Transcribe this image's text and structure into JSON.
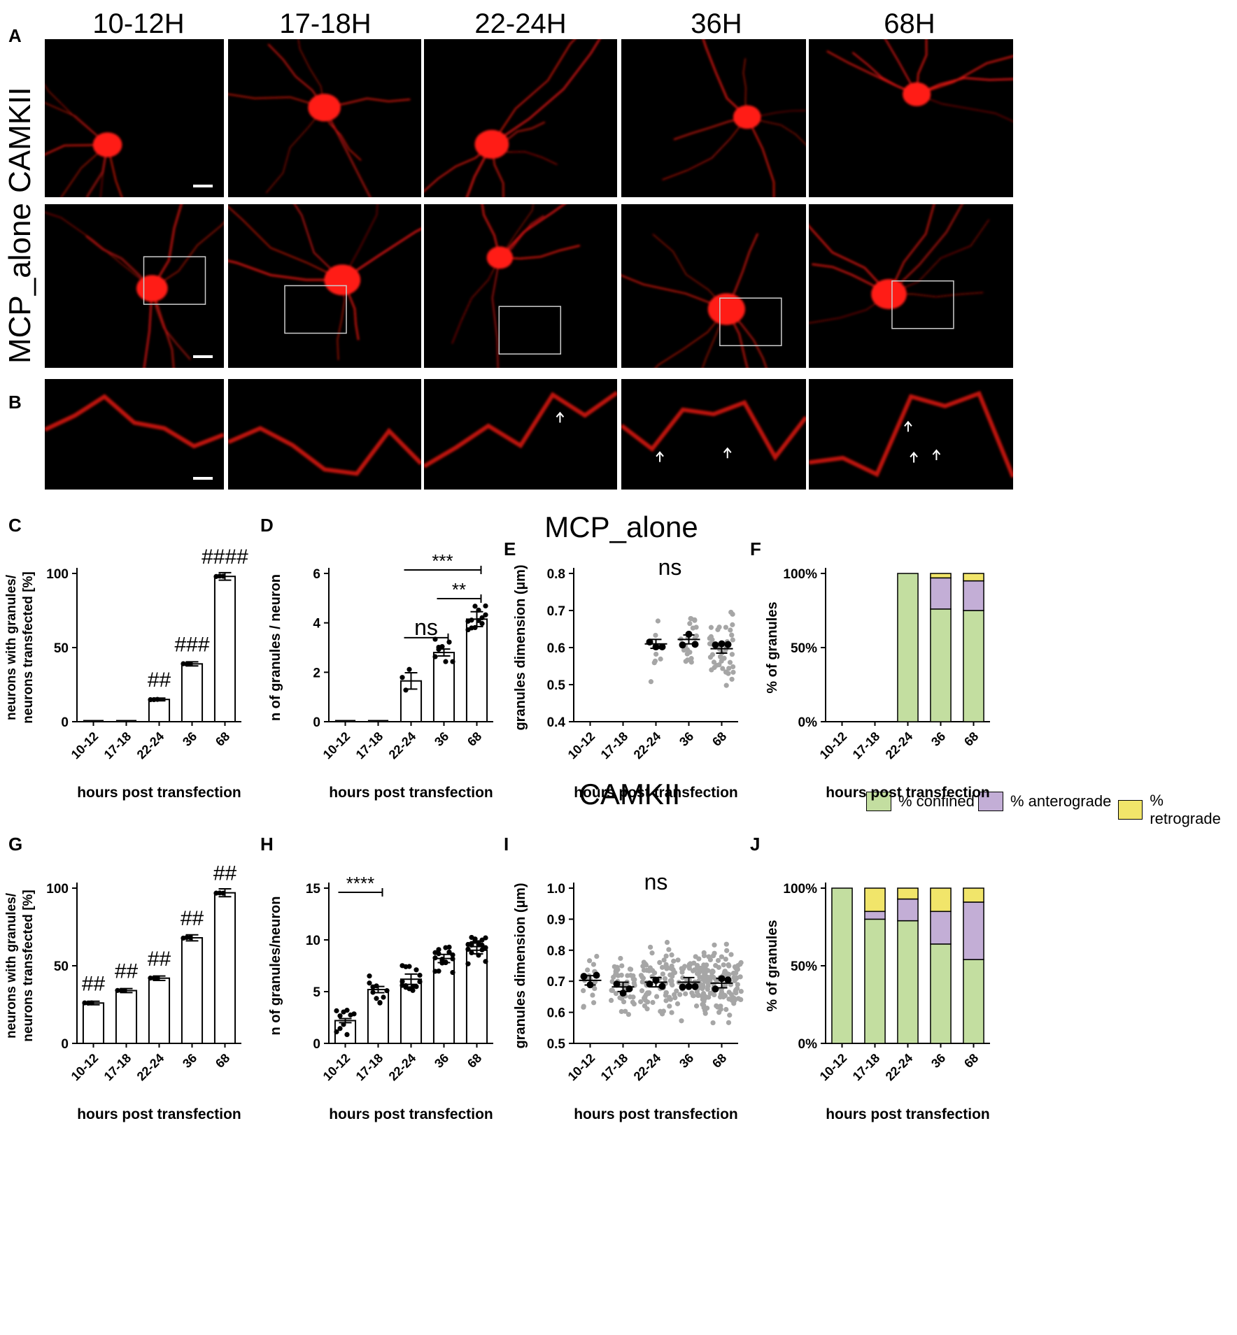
{
  "panels": {
    "A": "A",
    "B": "B",
    "C": "C",
    "D": "D",
    "E": "E",
    "F": "F",
    "G": "G",
    "H": "H",
    "I": "I",
    "J": "J"
  },
  "timepoints": [
    "10-12H",
    "17-18H",
    "22-24H",
    "36H",
    "68H"
  ],
  "row_labels": {
    "camkii": "CAMKII",
    "mcp": "MCP_alone"
  },
  "section_titles": {
    "mcp": "MCP_alone",
    "camkii": "CAMKII"
  },
  "legend": [
    {
      "label": "% confined",
      "color": "#c3dea0"
    },
    {
      "label": "% anterograde",
      "color": "#c3aed6"
    },
    {
      "label": "% retrograde",
      "color": "#f1e56a"
    }
  ],
  "colors": {
    "micro_red": "#ff1a14",
    "confined": "#c3dea0",
    "anterograde": "#c3aed6",
    "retrograde": "#f1e56a",
    "grey_dot": "#a6a6a6"
  },
  "chart_data": [
    {
      "id": "C",
      "type": "bar",
      "categories": [
        "10-12",
        "17-18",
        "22-24",
        "36",
        "68"
      ],
      "values": [
        0,
        0,
        15,
        39,
        98
      ],
      "xlabel": "hours post transfection",
      "ylabel_lines": [
        "neurons with granules/",
        "neurons transfected [%]"
      ],
      "ylim": [
        0,
        100
      ],
      "yticks": [
        0,
        50,
        100
      ],
      "annotations": [
        "",
        "",
        "##",
        "###",
        "####"
      ]
    },
    {
      "id": "D",
      "type": "bar",
      "categories": [
        "10-12",
        "17-18",
        "22-24",
        "36",
        "68"
      ],
      "values": [
        0,
        0,
        1.65,
        2.8,
        4.15
      ],
      "sem": [
        0,
        0,
        0.33,
        0.14,
        0.3
      ],
      "xlabel": "hours post transfection",
      "ylabel": "n of granules / neuron",
      "ylim": [
        0,
        6
      ],
      "yticks": [
        0,
        2,
        4,
        6
      ],
      "brackets": [
        {
          "from": 2,
          "to": 4,
          "label": "***"
        },
        {
          "from": 3,
          "to": 4,
          "label": "**"
        },
        {
          "from": 2,
          "to": 3,
          "label": "ns"
        }
      ]
    },
    {
      "id": "E",
      "type": "scatter",
      "categories": [
        "10-12",
        "17-18",
        "22-24",
        "36",
        "68"
      ],
      "means": [
        null,
        null,
        0.61,
        0.622,
        0.597
      ],
      "xlabel": "hours post transfection",
      "ylabel": "granules dimension (µm)",
      "ylim": [
        0.4,
        0.8
      ],
      "yticks": [
        0.4,
        0.5,
        0.6,
        0.7,
        0.8
      ],
      "annotation": "ns"
    },
    {
      "id": "F",
      "type": "bar",
      "stacked": true,
      "categories": [
        "10-12",
        "17-18",
        "22-24",
        "36",
        "68"
      ],
      "series": [
        {
          "name": "% confined",
          "values": [
            0,
            0,
            100,
            76,
            75
          ]
        },
        {
          "name": "% anterograde",
          "values": [
            0,
            0,
            0,
            21,
            20
          ]
        },
        {
          "name": "% retrograde",
          "values": [
            0,
            0,
            0,
            3,
            5
          ]
        }
      ],
      "xlabel": "hours post transfection",
      "ylabel": "% of granules",
      "yticks": [
        "0%",
        "50%",
        "100%"
      ]
    },
    {
      "id": "G",
      "type": "bar",
      "categories": [
        "10-12",
        "17-18",
        "22-24",
        "36",
        "68"
      ],
      "values": [
        26,
        34,
        42,
        68,
        97
      ],
      "xlabel": "hours post transfection",
      "ylabel_lines": [
        "neurons with granules/",
        "neurons transfected [%]"
      ],
      "ylim": [
        0,
        100
      ],
      "yticks": [
        0,
        50,
        100
      ],
      "annotations": [
        "##",
        "##",
        "##",
        "##",
        "##"
      ]
    },
    {
      "id": "H",
      "type": "bar",
      "categories": [
        "10-12",
        "17-18",
        "22-24",
        "36",
        "68"
      ],
      "values": [
        2.2,
        5.2,
        6.2,
        8.2,
        9.0
      ],
      "sem": [
        0.2,
        0.3,
        0.5,
        0.4,
        0.35
      ],
      "xlabel": "hours post transfection",
      "ylabel": "n of granules/neuron",
      "ylim": [
        0,
        15
      ],
      "yticks": [
        0,
        5,
        10,
        15
      ],
      "brackets": [
        {
          "from": 0,
          "to": 1,
          "label": "****"
        }
      ]
    },
    {
      "id": "I",
      "type": "scatter",
      "categories": [
        "10-12",
        "17-18",
        "22-24",
        "36",
        "68"
      ],
      "means": [
        0.703,
        0.682,
        0.697,
        0.697,
        0.694
      ],
      "xlabel": "hours post transfection",
      "ylabel": "granules dimension (µm)",
      "ylim": [
        0.5,
        1.0
      ],
      "yticks": [
        0.5,
        0.6,
        0.7,
        0.8,
        0.9,
        1.0
      ],
      "annotation": "ns"
    },
    {
      "id": "J",
      "type": "bar",
      "stacked": true,
      "categories": [
        "10-12",
        "17-18",
        "22-24",
        "36",
        "68"
      ],
      "series": [
        {
          "name": "% confined",
          "values": [
            100,
            80,
            79,
            64,
            54
          ]
        },
        {
          "name": "% anterograde",
          "values": [
            0,
            5,
            14,
            21,
            37
          ]
        },
        {
          "name": "% retrograde",
          "values": [
            0,
            15,
            7,
            15,
            9
          ]
        }
      ],
      "xlabel": "hours post transfection",
      "ylabel": "% of granules",
      "yticks": [
        "0%",
        "50%",
        "100%"
      ]
    }
  ]
}
